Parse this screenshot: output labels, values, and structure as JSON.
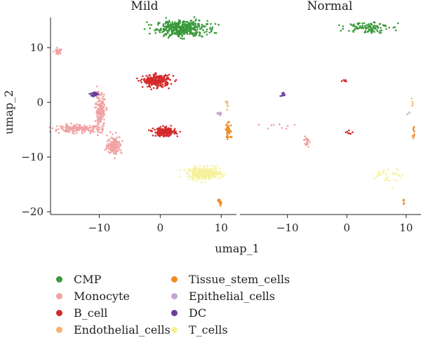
{
  "chart_data": {
    "type": "scatter",
    "panels": [
      "Mild",
      "Normal"
    ],
    "xlabel": "umap_1",
    "ylabel": "umap_2",
    "xlim": [
      -18,
      12.5
    ],
    "ylim": [
      -20.5,
      15.5
    ],
    "xticks": [
      -10,
      0,
      10
    ],
    "xtick_labels": [
      "−10",
      "0",
      "10"
    ],
    "yticks": [
      -20,
      -10,
      0,
      10
    ],
    "ytick_labels": [
      "−20",
      "−10",
      "0",
      "10"
    ],
    "grid": false,
    "legend_position": "bottom",
    "series": [
      {
        "name": "CMP",
        "color": "#3a9a3a",
        "clusters": [
          {
            "panel": 0,
            "x": 3.5,
            "y": 13.5,
            "rx": 3.8,
            "ry": 1.3,
            "n": 420
          },
          {
            "panel": 1,
            "x": 3.5,
            "y": 13.8,
            "rx": 3.2,
            "ry": 1.0,
            "n": 110
          }
        ]
      },
      {
        "name": "Monocyte",
        "color": "#f1a3a3",
        "clusters": [
          {
            "panel": 0,
            "x": -16.8,
            "y": 9.2,
            "rx": 0.6,
            "ry": 0.5,
            "n": 35
          },
          {
            "panel": 0,
            "x": -9.8,
            "y": -1.5,
            "rx": 0.7,
            "ry": 2.8,
            "n": 180
          },
          {
            "panel": 0,
            "x": -13.5,
            "y": -4.8,
            "rx": 3.5,
            "ry": 0.6,
            "n": 200
          },
          {
            "panel": 0,
            "x": -7.5,
            "y": -7.8,
            "rx": 1.1,
            "ry": 1.5,
            "n": 150
          },
          {
            "panel": 1,
            "x": -6.8,
            "y": -7.3,
            "rx": 0.4,
            "ry": 1.2,
            "n": 22
          },
          {
            "panel": 1,
            "x": -12.0,
            "y": -4.5,
            "rx": 3.5,
            "ry": 0.8,
            "n": 9
          }
        ]
      },
      {
        "name": "B_cell",
        "color": "#d42a2a",
        "clusters": [
          {
            "panel": 0,
            "x": -0.6,
            "y": 3.9,
            "rx": 2.0,
            "ry": 1.0,
            "n": 260
          },
          {
            "panel": 0,
            "x": 0.7,
            "y": -5.4,
            "rx": 1.6,
            "ry": 0.7,
            "n": 220
          },
          {
            "panel": 1,
            "x": -0.8,
            "y": 4.0,
            "rx": 1.0,
            "ry": 0.4,
            "n": 6
          },
          {
            "panel": 1,
            "x": 0.5,
            "y": -5.5,
            "rx": 1.5,
            "ry": 0.3,
            "n": 7
          }
        ]
      },
      {
        "name": "Endothelial_cells",
        "color": "#f6b26b",
        "clusters": [
          {
            "panel": 0,
            "x": 11.0,
            "y": -0.5,
            "rx": 0.2,
            "ry": 0.8,
            "n": 7
          },
          {
            "panel": 1,
            "x": 11.0,
            "y": -0.3,
            "rx": 0.2,
            "ry": 0.8,
            "n": 4
          }
        ]
      },
      {
        "name": "Tissue_stem_cells",
        "color": "#ee8a22",
        "clusters": [
          {
            "panel": 0,
            "x": 11.2,
            "y": -5.3,
            "rx": 0.5,
            "ry": 1.3,
            "n": 45
          },
          {
            "panel": 0,
            "x": 9.7,
            "y": -18.3,
            "rx": 0.25,
            "ry": 0.6,
            "n": 12
          },
          {
            "panel": 1,
            "x": 11.3,
            "y": -5.5,
            "rx": 0.25,
            "ry": 1.2,
            "n": 8
          },
          {
            "panel": 1,
            "x": 9.5,
            "y": -18.1,
            "rx": 0.25,
            "ry": 0.5,
            "n": 5
          }
        ]
      },
      {
        "name": "Epithelial_cells",
        "color": "#c3a7d4",
        "clusters": [
          {
            "panel": 0,
            "x": 9.8,
            "y": -2.0,
            "rx": 0.4,
            "ry": 0.3,
            "n": 10
          },
          {
            "panel": 1,
            "x": 10.5,
            "y": -2.0,
            "rx": 0.3,
            "ry": 0.3,
            "n": 3
          }
        ]
      },
      {
        "name": "DC",
        "color": "#6a3d9a",
        "clusters": [
          {
            "panel": 0,
            "x": -10.8,
            "y": 1.5,
            "rx": 0.5,
            "ry": 0.4,
            "n": 30
          },
          {
            "panel": 1,
            "x": -10.8,
            "y": 1.5,
            "rx": 0.5,
            "ry": 0.4,
            "n": 8
          }
        ]
      },
      {
        "name": "T_cells",
        "color": "#f5f19a",
        "clusters": [
          {
            "panel": 0,
            "x": 7.2,
            "y": -13.0,
            "rx": 2.5,
            "ry": 1.0,
            "n": 320
          },
          {
            "panel": 1,
            "x": 7.0,
            "y": -13.5,
            "rx": 2.0,
            "ry": 1.5,
            "n": 30
          }
        ]
      }
    ]
  }
}
